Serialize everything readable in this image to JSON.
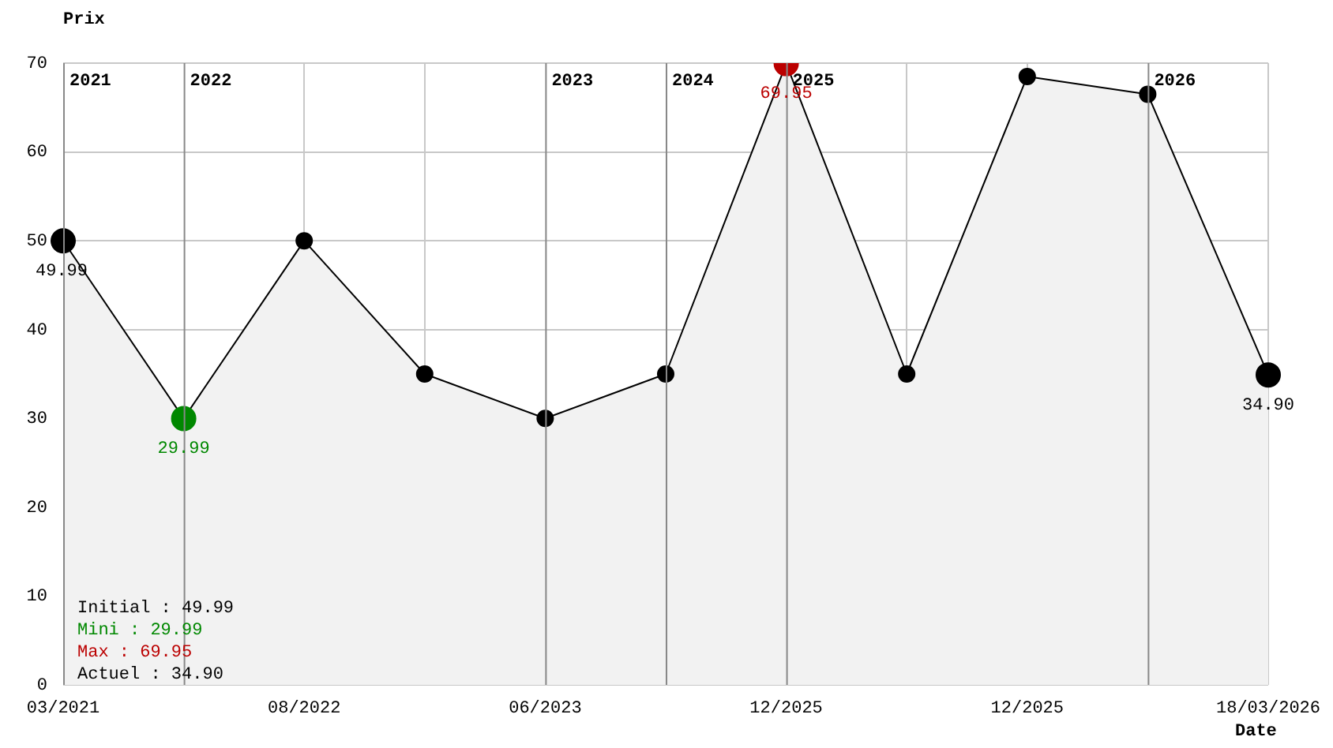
{
  "chart_data": {
    "type": "area",
    "xlabel": "Date",
    "ylabel": "Prix",
    "categories": [
      "03/2021",
      null,
      "08/2022",
      null,
      "06/2023",
      null,
      "12/2025",
      null,
      "12/2025",
      null,
      "18/03/2026"
    ],
    "ylim": [
      0,
      70
    ],
    "yticks": [
      0,
      10,
      20,
      30,
      40,
      50,
      60,
      70
    ],
    "series": [
      {
        "color": "#000000",
        "values": [
          49.99,
          29.99,
          50,
          35,
          30,
          35,
          69.95,
          35,
          68.5,
          66.5,
          34.9
        ],
        "colors": [
          "#000000",
          "#008800",
          "#000000",
          "#000000",
          "#000000",
          "#000000",
          "#bb0000",
          "#000000",
          "#000000",
          "#000000",
          "#000000"
        ],
        "value_labels": [
          "49.99",
          "29.99",
          null,
          null,
          null,
          null,
          "69.95",
          null,
          null,
          null,
          "34.90"
        ]
      }
    ],
    "annotations": [
      "2021",
      "2022",
      "2023",
      "2024",
      "2025",
      "2026",
      "Initial : 49.99",
      "Mini : 29.99",
      "Max : 69.95",
      "Actuel : 34.90"
    ],
    "grid": true,
    "marker": "circle",
    "legend": false
  }
}
